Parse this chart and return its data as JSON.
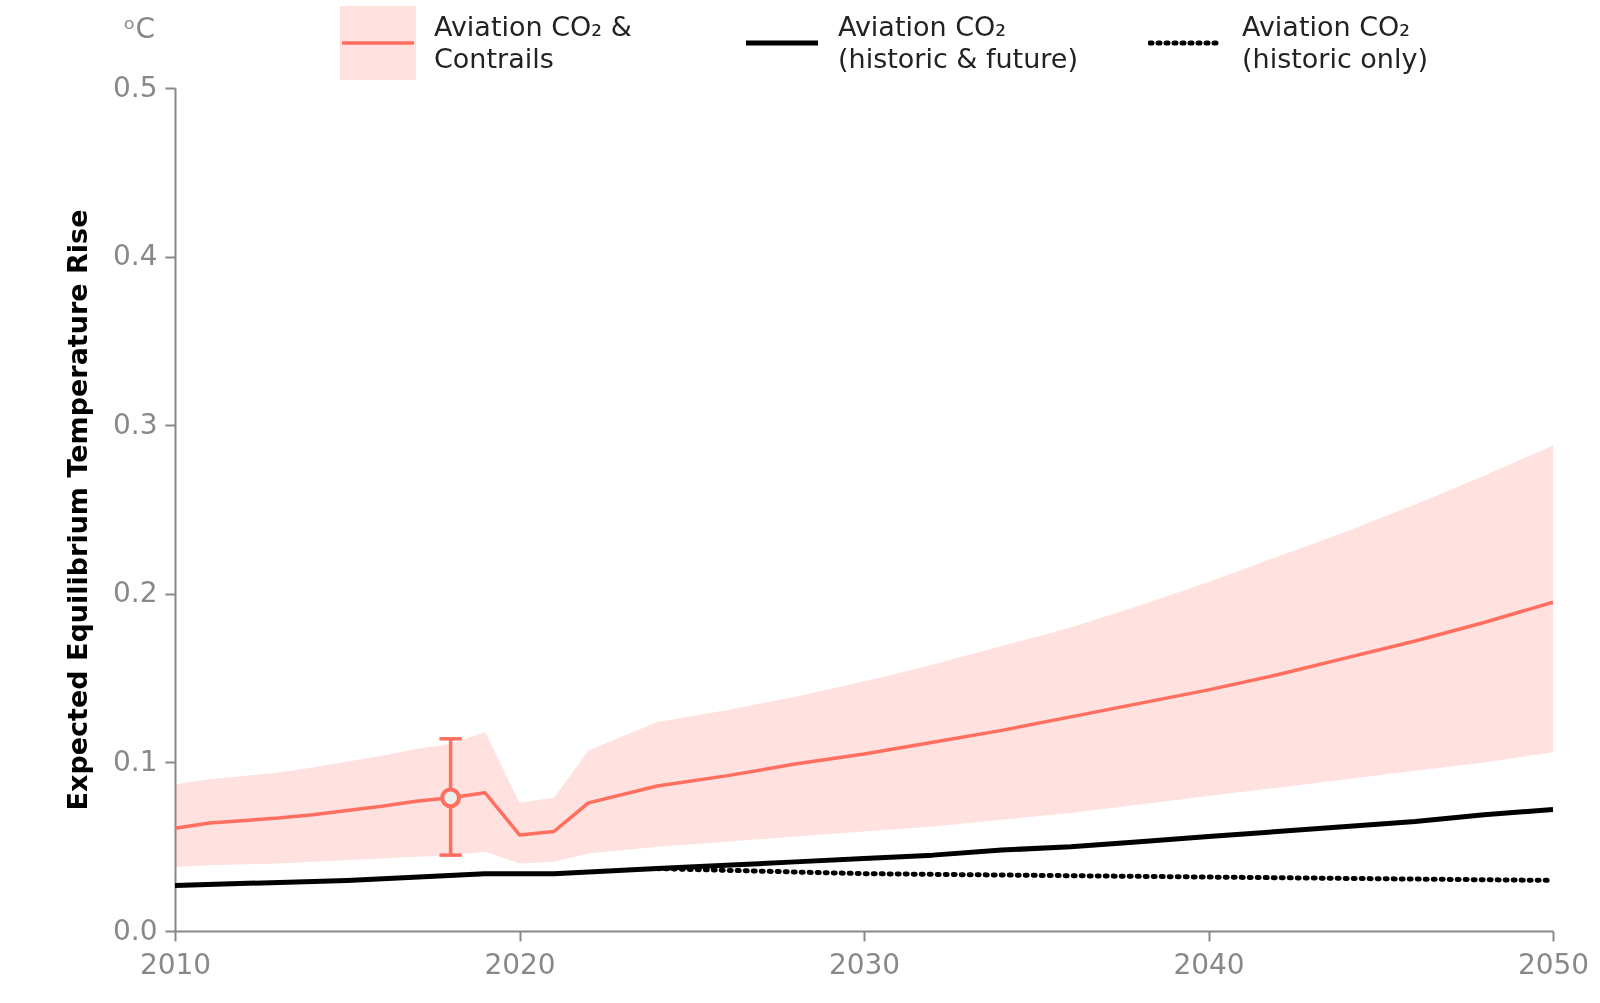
{
  "chart_data": {
    "type": "line",
    "ylabel": "Expected Equilibrium Temperature Rise",
    "annotations": [
      "ᵒC"
    ],
    "xlim": [
      2010,
      2050
    ],
    "xticks": [
      2010,
      2020,
      2030,
      2040,
      2050
    ],
    "ylim": [
      0,
      0.5
    ],
    "yticks": [
      {
        "value": 0,
        "label": "0.0"
      },
      0.1,
      0.2,
      0.3,
      0.4,
      0.5
    ],
    "grid": false,
    "legend": "top",
    "marker": "none",
    "series": [
      {
        "name": "Aviation CO₂ & Contrails",
        "color": "#ff6e5e",
        "x": [
          2010,
          2011,
          2013,
          2014,
          2016,
          2017,
          2018,
          2019,
          2020,
          2021,
          2022,
          2024,
          2026,
          2028,
          2030,
          2032,
          2034,
          2036,
          2038,
          2040,
          2042,
          2044,
          2046,
          2048,
          2050
        ],
        "values": [
          0.061,
          0.064,
          0.067,
          0.069,
          0.074,
          0.077,
          0.079,
          0.082,
          0.057,
          0.059,
          0.076,
          0.086,
          0.092,
          0.099,
          0.105,
          0.112,
          0.119,
          0.127,
          0.135,
          0.143,
          0.152,
          0.162,
          0.172,
          0.183,
          0.195
        ],
        "lower": [
          0.038,
          0.039,
          0.04,
          0.041,
          0.043,
          0.044,
          0.045,
          0.047,
          0.04,
          0.041,
          0.046,
          0.05,
          0.053,
          0.056,
          0.059,
          0.062,
          0.066,
          0.07,
          0.075,
          0.08,
          0.085,
          0.09,
          0.095,
          0.1,
          0.106
        ],
        "upper": [
          0.087,
          0.09,
          0.094,
          0.097,
          0.104,
          0.108,
          0.111,
          0.118,
          0.076,
          0.079,
          0.107,
          0.124,
          0.131,
          0.139,
          0.148,
          0.158,
          0.169,
          0.18,
          0.193,
          0.207,
          0.222,
          0.237,
          0.253,
          0.27,
          0.288
        ]
      },
      {
        "name": "Aviation CO₂ (historic & future)",
        "color": "#000000",
        "line_style": "solid",
        "x": [
          2010,
          2015,
          2019,
          2021,
          2024,
          2026,
          2028,
          2030,
          2032,
          2034,
          2036,
          2038,
          2040,
          2042,
          2044,
          2046,
          2048,
          2050
        ],
        "values": [
          0.027,
          0.03,
          0.034,
          0.034,
          0.037,
          0.039,
          0.041,
          0.043,
          0.045,
          0.048,
          0.05,
          0.053,
          0.056,
          0.059,
          0.062,
          0.065,
          0.069,
          0.072
        ]
      },
      {
        "name": "Aviation CO₂ (historic only)",
        "color": "#000000",
        "line_style": "dotted",
        "x": [
          2024,
          2026,
          2030,
          2035,
          2040,
          2045,
          2050
        ],
        "values": [
          0.037,
          0.036,
          0.034,
          0.033,
          0.032,
          0.031,
          0.03
        ]
      },
      {
        "type": "scatter",
        "color": "#ff6e5e",
        "marker": "circle",
        "x": [
          2018
        ],
        "values": [
          0.079
        ],
        "errors": [
          [
            0.045,
            0.114
          ]
        ]
      }
    ]
  }
}
